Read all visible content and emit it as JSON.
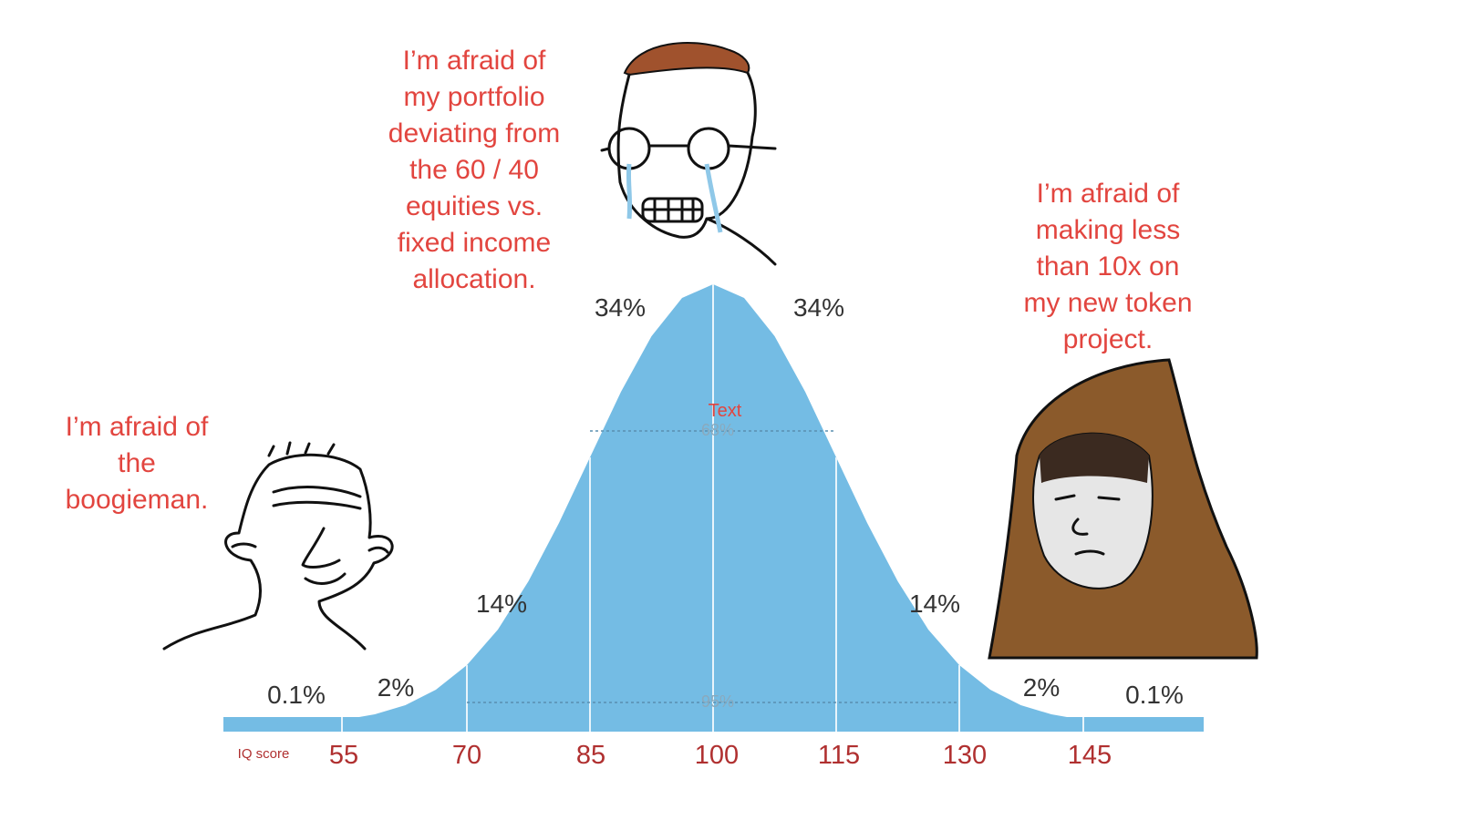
{
  "captions": {
    "left": [
      "I’m afraid of",
      "the",
      "boogieman."
    ],
    "middle": [
      "I’m afraid of",
      "my portfolio",
      "deviating from",
      "the 60 / 40",
      "equities vs.",
      "fixed income",
      "allocation."
    ],
    "right": [
      "I’m afraid of",
      "making less",
      "than 10x on",
      "my new token",
      "project."
    ]
  },
  "percent_labels": [
    "0.1%",
    "2%",
    "14%",
    "34%",
    "34%",
    "14%",
    "2%",
    "0.1%"
  ],
  "center_labels": {
    "text": "Text",
    "inner": "68%",
    "outer": "95%"
  },
  "axis": {
    "label": "IQ score",
    "ticks": [
      "55",
      "70",
      "85",
      "100",
      "115",
      "130",
      "145"
    ]
  }
}
